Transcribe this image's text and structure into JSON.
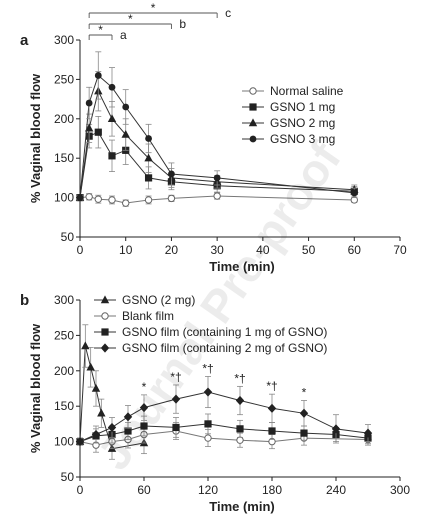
{
  "watermark": "Journal Pre-proof",
  "chart_data": [
    {
      "panel": "a",
      "type": "line",
      "ylabel": "% Vaginal blood flow",
      "xlabel": "Time (min)",
      "xlim": [
        0,
        70
      ],
      "ylim": [
        50,
        300
      ],
      "xticks": [
        0,
        10,
        20,
        30,
        40,
        50,
        60,
        70
      ],
      "yticks": [
        50,
        100,
        150,
        200,
        250,
        300
      ],
      "legend_position": "right",
      "series": [
        {
          "name": "Normal saline",
          "marker": "circle-open",
          "x": [
            0,
            2,
            4,
            7,
            10,
            15,
            20,
            30,
            60
          ],
          "y": [
            100,
            101,
            98,
            97,
            93,
            97,
            99,
            102,
            97
          ],
          "err": [
            3,
            4,
            5,
            5,
            4,
            5,
            4,
            4,
            3
          ]
        },
        {
          "name": "GSNO 1 mg",
          "marker": "square",
          "x": [
            0,
            2,
            4,
            7,
            10,
            15,
            20,
            30,
            60
          ],
          "y": [
            100,
            178,
            183,
            153,
            160,
            125,
            120,
            115,
            108
          ],
          "err": [
            3,
            15,
            20,
            20,
            18,
            14,
            10,
            8,
            6
          ]
        },
        {
          "name": "GSNO 2 mg",
          "marker": "triangle",
          "x": [
            0,
            2,
            4,
            7,
            10,
            15,
            20,
            30,
            60
          ],
          "y": [
            100,
            188,
            235,
            200,
            180,
            150,
            125,
            120,
            110
          ],
          "err": [
            3,
            18,
            25,
            22,
            20,
            18,
            12,
            8,
            6
          ]
        },
        {
          "name": "GSNO 3 mg",
          "marker": "circle",
          "x": [
            0,
            2,
            4,
            7,
            10,
            15,
            20,
            30,
            60
          ],
          "y": [
            100,
            220,
            255,
            240,
            215,
            175,
            130,
            125,
            106
          ],
          "err": [
            3,
            20,
            30,
            25,
            22,
            18,
            14,
            9,
            6
          ]
        }
      ],
      "significance_brackets": [
        {
          "symbol": "*",
          "label": "a",
          "from": 2,
          "to": 7
        },
        {
          "symbol": "*",
          "label": "b",
          "from": 2,
          "to": 20
        },
        {
          "symbol": "*",
          "label": "c",
          "from": 2,
          "to": 30
        }
      ]
    },
    {
      "panel": "b",
      "type": "line",
      "ylabel": "% Vaginal blood flow",
      "xlabel": "Time (min)",
      "xlim": [
        0,
        300
      ],
      "ylim": [
        50,
        300
      ],
      "xticks": [
        0,
        60,
        120,
        180,
        240,
        300
      ],
      "yticks": [
        50,
        100,
        150,
        200,
        250,
        300
      ],
      "legend_position": "top",
      "series": [
        {
          "name": "GSNO (2 mg)",
          "marker": "triangle",
          "x": [
            0,
            5,
            10,
            15,
            20,
            30,
            60
          ],
          "y": [
            100,
            235,
            205,
            175,
            140,
            90,
            98
          ],
          "err": [
            5,
            30,
            28,
            25,
            20,
            15,
            15
          ]
        },
        {
          "name": "Blank film",
          "marker": "circle-open",
          "x": [
            0,
            15,
            30,
            45,
            60,
            90,
            120,
            150,
            180,
            210,
            270
          ],
          "y": [
            100,
            95,
            100,
            103,
            110,
            115,
            105,
            102,
            100,
            105,
            103
          ],
          "err": [
            5,
            10,
            10,
            12,
            12,
            12,
            12,
            10,
            10,
            10,
            8
          ]
        },
        {
          "name": "GSNO film (containing 1 mg of GSNO)",
          "marker": "square",
          "x": [
            0,
            15,
            30,
            45,
            60,
            90,
            120,
            150,
            180,
            210,
            240,
            270
          ],
          "y": [
            100,
            108,
            110,
            115,
            122,
            120,
            125,
            118,
            115,
            112,
            110,
            105
          ],
          "err": [
            5,
            10,
            12,
            12,
            14,
            14,
            14,
            12,
            12,
            10,
            10,
            8
          ]
        },
        {
          "name": "GSNO film (containing 2 mg of GSNO)",
          "marker": "diamond",
          "x": [
            0,
            15,
            30,
            45,
            60,
            90,
            120,
            150,
            180,
            210,
            240,
            270
          ],
          "y": [
            100,
            110,
            120,
            135,
            148,
            160,
            170,
            158,
            147,
            140,
            118,
            112
          ],
          "err": [
            5,
            12,
            14,
            16,
            18,
            20,
            22,
            20,
            20,
            18,
            20,
            12
          ]
        }
      ],
      "significance_marks": [
        {
          "x": 60,
          "symbol": "*"
        },
        {
          "x": 90,
          "symbol": "*†"
        },
        {
          "x": 120,
          "symbol": "*†"
        },
        {
          "x": 150,
          "symbol": "*†"
        },
        {
          "x": 180,
          "symbol": "*†"
        },
        {
          "x": 210,
          "symbol": "*"
        }
      ]
    }
  ]
}
